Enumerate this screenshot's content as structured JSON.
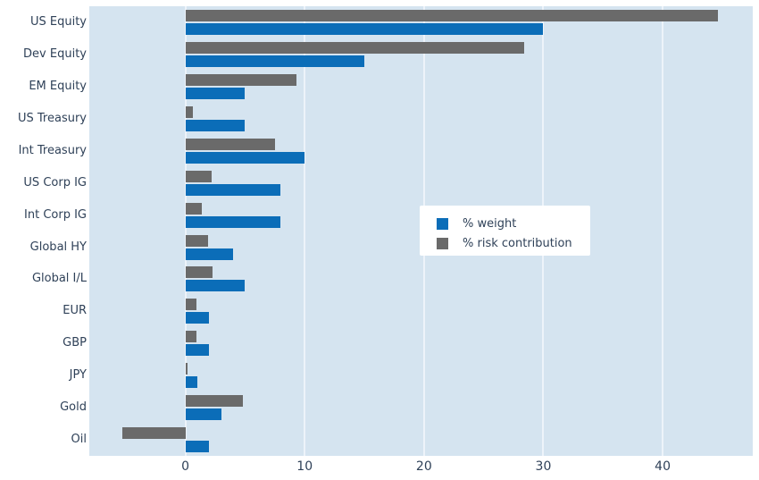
{
  "legend": {
    "items": [
      {
        "label": "% weight",
        "color": "#0b6db8"
      },
      {
        "label": "% risk contribution",
        "color": "#6a6a6a"
      }
    ]
  },
  "chart_data": {
    "type": "bar",
    "orientation": "horizontal",
    "title": "",
    "xlabel": "",
    "ylabel": "",
    "categories": [
      "US Equity",
      "Dev Equity",
      "EM Equity",
      "US Treasury",
      "Int Treasury",
      "US Corp IG",
      "Int Corp IG",
      "Global HY",
      "Global I/L",
      "EUR",
      "GBP",
      "JPY",
      "Gold",
      "Oil"
    ],
    "series": [
      {
        "name": "% weight",
        "color": "#0b6db8",
        "values": [
          30,
          15,
          5,
          5,
          10,
          8,
          8,
          4,
          5,
          2,
          2,
          1,
          3,
          2
        ]
      },
      {
        "name": "% risk contribution",
        "color": "#6a6a6a",
        "values": [
          44.6,
          28.4,
          9.3,
          0.6,
          7.5,
          2.2,
          1.4,
          1.9,
          2.3,
          0.9,
          0.9,
          0.15,
          4.85,
          -5.3
        ]
      }
    ],
    "xticks": [
      0,
      10,
      20,
      30,
      40
    ],
    "xlim": [
      -8.05,
      47.55
    ],
    "grid": true,
    "legend_position": "center-right",
    "plot_bg": "#d5e4f0",
    "grid_color": "#edf3fa",
    "text_color": "#2f4158"
  }
}
